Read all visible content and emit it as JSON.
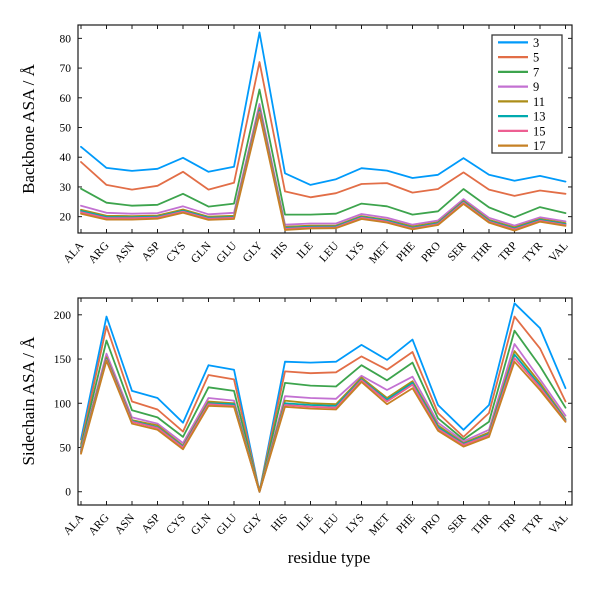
{
  "figure": {
    "background": "#ffffff",
    "frame_color": "#1a1a1a"
  },
  "legend": {
    "position": "upper-right",
    "labels": [
      "3",
      "5",
      "7",
      "9",
      "11",
      "13",
      "15",
      "17"
    ],
    "border_color": "#3a3a3a"
  },
  "chart_data": [
    {
      "type": "line",
      "name": "backbone-asa",
      "ylabel": "Backbone ASA / Å",
      "xlabel": "",
      "ylim": [
        14.5,
        84.5
      ],
      "yticks": [
        20,
        30,
        40,
        50,
        60,
        70,
        80
      ],
      "grid": false,
      "legend_position": "upper-right",
      "categories": [
        "ALA",
        "ARG",
        "ASN",
        "ASP",
        "CYS",
        "GLN",
        "GLU",
        "GLY",
        "HIS",
        "ILE",
        "LEU",
        "LYS",
        "MET",
        "PHE",
        "PRO",
        "SER",
        "THR",
        "TRP",
        "TYR",
        "VAL"
      ],
      "series": [
        {
          "name": "3",
          "color": "#009AFA",
          "values": [
            43.5,
            36.4,
            35.4,
            36.1,
            39.8,
            35.1,
            36.8,
            82.0,
            34.6,
            30.7,
            32.6,
            36.3,
            35.5,
            33.0,
            34.1,
            39.7,
            34.1,
            32.1,
            33.7,
            31.8
          ]
        },
        {
          "name": "5",
          "color": "#E26E47",
          "values": [
            38.4,
            30.7,
            29.1,
            30.4,
            35.1,
            29.1,
            31.4,
            72.0,
            28.5,
            26.5,
            27.9,
            31.0,
            31.3,
            28.1,
            29.3,
            34.9,
            29.1,
            27.0,
            28.8,
            27.7
          ]
        },
        {
          "name": "7",
          "color": "#3DA44D",
          "values": [
            29.4,
            24.7,
            23.7,
            24.0,
            27.7,
            23.4,
            24.4,
            62.8,
            20.7,
            20.7,
            21.0,
            24.4,
            23.5,
            20.7,
            21.8,
            29.3,
            23.1,
            19.8,
            23.2,
            21.2
          ]
        },
        {
          "name": "9",
          "color": "#C371D2",
          "values": [
            23.7,
            21.3,
            21.0,
            21.2,
            23.5,
            20.8,
            21.3,
            57.9,
            17.3,
            17.7,
            17.7,
            20.9,
            19.6,
            17.3,
            18.7,
            25.9,
            19.6,
            17.0,
            19.8,
            18.4
          ]
        },
        {
          "name": "11",
          "color": "#AC8D18",
          "values": [
            22.3,
            20.3,
            20.2,
            20.4,
            22.4,
            20.0,
            20.3,
            56.5,
            16.6,
            17.0,
            17.0,
            20.2,
            18.9,
            16.7,
            18.1,
            25.3,
            18.9,
            16.4,
            19.2,
            17.8
          ]
        },
        {
          "name": "13",
          "color": "#00AAAE",
          "values": [
            21.9,
            19.9,
            19.8,
            20.0,
            22.0,
            19.6,
            19.9,
            55.8,
            16.2,
            16.6,
            16.7,
            19.9,
            18.6,
            16.3,
            17.8,
            25.0,
            18.6,
            16.0,
            18.9,
            17.5
          ]
        },
        {
          "name": "15",
          "color": "#ED5F92",
          "values": [
            21.5,
            19.5,
            19.5,
            19.7,
            21.7,
            19.3,
            19.6,
            55.2,
            15.9,
            16.3,
            16.4,
            19.6,
            18.3,
            16.0,
            17.5,
            24.7,
            18.3,
            15.7,
            18.6,
            17.2
          ]
        },
        {
          "name": "17",
          "color": "#C68125",
          "values": [
            21.0,
            19.0,
            19.0,
            19.3,
            21.3,
            18.9,
            19.2,
            54.5,
            15.5,
            16.0,
            16.1,
            19.2,
            18.0,
            15.7,
            17.2,
            24.3,
            18.0,
            15.3,
            18.3,
            16.9
          ]
        }
      ]
    },
    {
      "type": "line",
      "name": "sidechain-asa",
      "ylabel": "Sidechain ASA / Å",
      "xlabel": "residue type",
      "ylim": [
        -15,
        219
      ],
      "yticks": [
        0,
        50,
        100,
        150,
        200
      ],
      "grid": false,
      "legend_position": "none",
      "categories": [
        "ALA",
        "ARG",
        "ASN",
        "ASP",
        "CYS",
        "GLN",
        "GLU",
        "GLY",
        "HIS",
        "ILE",
        "LEU",
        "LYS",
        "MET",
        "PHE",
        "PRO",
        "SER",
        "THR",
        "TRP",
        "TYR",
        "VAL"
      ],
      "series": [
        {
          "name": "3",
          "color": "#009AFA",
          "values": [
            59,
            198,
            114,
            106,
            78,
            143,
            138,
            0,
            147,
            146,
            147,
            166,
            149,
            172,
            98,
            70,
            98,
            213,
            185,
            117
          ]
        },
        {
          "name": "5",
          "color": "#E26E47",
          "values": [
            54,
            187,
            102,
            93,
            68,
            132,
            127,
            0,
            136,
            134,
            135,
            153,
            138,
            158,
            89,
            62,
            89,
            198,
            162,
            102
          ]
        },
        {
          "name": "7",
          "color": "#3DA44D",
          "values": [
            51,
            171,
            92,
            84,
            62,
            118,
            114,
            0,
            123,
            120,
            119,
            143,
            126,
            146,
            83,
            59,
            79,
            182,
            142,
            95
          ]
        },
        {
          "name": "9",
          "color": "#C371D2",
          "values": [
            48,
            156,
            84,
            77,
            55,
            106,
            103,
            0,
            108,
            106,
            105,
            131,
            115,
            130,
            78,
            57,
            70,
            167,
            127,
            86
          ]
        },
        {
          "name": "11",
          "color": "#AC8D18",
          "values": [
            46,
            152,
            81,
            75,
            52,
            102,
            100,
            0,
            103,
            100,
            99,
            129,
            106,
            125,
            75,
            55,
            67,
            159,
            123,
            82
          ]
        },
        {
          "name": "13",
          "color": "#00AAAE",
          "values": [
            45,
            150,
            80,
            73,
            51,
            100,
            99,
            0,
            100,
            98,
            97,
            127,
            104,
            123,
            73,
            54,
            65,
            155,
            120,
            81
          ]
        },
        {
          "name": "15",
          "color": "#ED5F92",
          "values": [
            44,
            149,
            79,
            72,
            50,
            99,
            97,
            0,
            98,
            96,
            95,
            126,
            102,
            121,
            71,
            53,
            64,
            151,
            118,
            80
          ]
        },
        {
          "name": "17",
          "color": "#C68125",
          "values": [
            43,
            148,
            77,
            70,
            48,
            97,
            96,
            0,
            96,
            94,
            93,
            124,
            99,
            117,
            69,
            51,
            62,
            147,
            115,
            79
          ]
        }
      ]
    }
  ]
}
